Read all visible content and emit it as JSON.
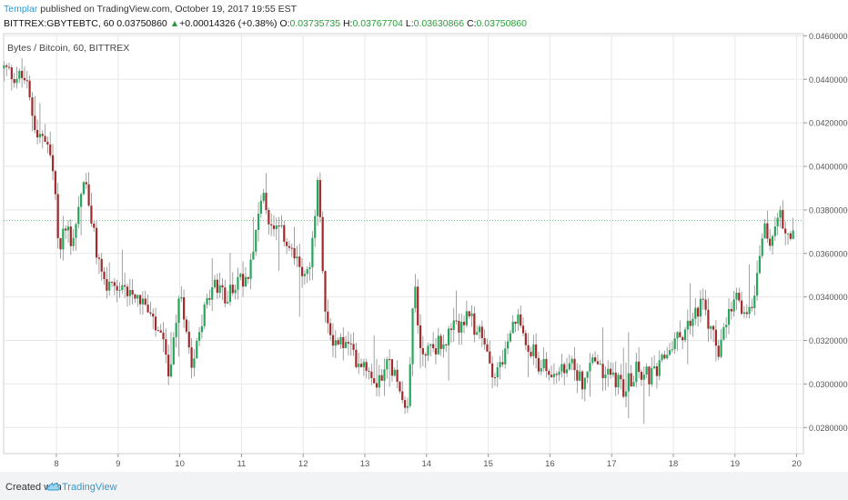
{
  "header": {
    "author": "Templar",
    "published_text": "published on TradingView.com, October 19, 2017 19:55 EST"
  },
  "quote": {
    "symbol": "BITTREX:GBYTEBTC, 60",
    "price": "0.03750860",
    "arrow": "▲",
    "change": "+0.00014326 (+0.38%)",
    "o_label": "O:",
    "o_value": "0.03735735",
    "h_label": "H:",
    "h_value": "0.03767704",
    "l_label": "L:",
    "l_value": "0.03630866",
    "c_label": "C:",
    "c_value": "0.03750860"
  },
  "footer": {
    "created_with": "Created with",
    "brand": "TradingView"
  },
  "colors": {
    "up": "#26a65b",
    "down": "#a12a2a",
    "grid": "#e8e8e8",
    "last_price_line": "#6cbf80",
    "brand": "#2e9ad3"
  },
  "chart_data": {
    "type": "candlestick",
    "title": "Bytes / Bitcoin, 60, BITTREX",
    "timeframe": "60",
    "x_ticks": [
      "8",
      "9",
      "10",
      "11",
      "12",
      "13",
      "14",
      "15",
      "16",
      "17",
      "18",
      "19",
      "20"
    ],
    "y_ticks": [
      "0.04600000",
      "0.04400000",
      "0.04200000",
      "0.04000000",
      "0.03800000",
      "0.03600000",
      "0.03400000",
      "0.03200000",
      "0.03000000",
      "0.02800000"
    ],
    "ylim": [
      0.0268,
      0.0461
    ],
    "last_price": 0.0375086,
    "grid": true,
    "anchors": [
      [
        7.15,
        0.0445
      ],
      [
        7.3,
        0.0442
      ],
      [
        7.5,
        0.044
      ],
      [
        7.6,
        0.0425
      ],
      [
        7.7,
        0.0415
      ],
      [
        7.85,
        0.041
      ],
      [
        7.95,
        0.0395
      ],
      [
        8.05,
        0.036
      ],
      [
        8.15,
        0.0375
      ],
      [
        8.25,
        0.0365
      ],
      [
        8.35,
        0.038
      ],
      [
        8.45,
        0.0395
      ],
      [
        8.55,
        0.0378
      ],
      [
        8.65,
        0.036
      ],
      [
        8.8,
        0.0345
      ],
      [
        9.0,
        0.034
      ],
      [
        9.2,
        0.0345
      ],
      [
        9.4,
        0.0338
      ],
      [
        9.55,
        0.0328
      ],
      [
        9.7,
        0.032
      ],
      [
        9.85,
        0.0303
      ],
      [
        10.0,
        0.0345
      ],
      [
        10.2,
        0.031
      ],
      [
        10.35,
        0.033
      ],
      [
        10.55,
        0.0345
      ],
      [
        10.75,
        0.034
      ],
      [
        10.95,
        0.0348
      ],
      [
        11.1,
        0.035
      ],
      [
        11.25,
        0.0375
      ],
      [
        11.35,
        0.0385
      ],
      [
        11.5,
        0.037
      ],
      [
        11.7,
        0.0368
      ],
      [
        11.9,
        0.0355
      ],
      [
        12.1,
        0.035
      ],
      [
        12.25,
        0.0395
      ],
      [
        12.35,
        0.033
      ],
      [
        12.5,
        0.032
      ],
      [
        12.7,
        0.0318
      ],
      [
        12.85,
        0.0312
      ],
      [
        13.0,
        0.031
      ],
      [
        13.2,
        0.0302
      ],
      [
        13.4,
        0.031
      ],
      [
        13.55,
        0.03
      ],
      [
        13.7,
        0.029
      ],
      [
        13.8,
        0.035
      ],
      [
        13.9,
        0.0315
      ],
      [
        14.1,
        0.0317
      ],
      [
        14.3,
        0.032
      ],
      [
        14.5,
        0.0327
      ],
      [
        14.7,
        0.033
      ],
      [
        14.9,
        0.032
      ],
      [
        15.1,
        0.0305
      ],
      [
        15.3,
        0.0315
      ],
      [
        15.45,
        0.033
      ],
      [
        15.6,
        0.0322
      ],
      [
        15.8,
        0.031
      ],
      [
        16.0,
        0.0305
      ],
      [
        16.2,
        0.0305
      ],
      [
        16.4,
        0.0308
      ],
      [
        16.55,
        0.03
      ],
      [
        16.7,
        0.0312
      ],
      [
        16.85,
        0.0305
      ],
      [
        17.0,
        0.0305
      ],
      [
        17.2,
        0.0298
      ],
      [
        17.4,
        0.0307
      ],
      [
        17.6,
        0.0303
      ],
      [
        17.75,
        0.0305
      ],
      [
        17.9,
        0.0315
      ],
      [
        18.1,
        0.0322
      ],
      [
        18.3,
        0.033
      ],
      [
        18.45,
        0.0338
      ],
      [
        18.6,
        0.0325
      ],
      [
        18.75,
        0.0315
      ],
      [
        18.85,
        0.0325
      ],
      [
        19.0,
        0.034
      ],
      [
        19.15,
        0.0332
      ],
      [
        19.3,
        0.034
      ],
      [
        19.45,
        0.0372
      ],
      [
        19.6,
        0.0365
      ],
      [
        19.75,
        0.0378
      ],
      [
        19.85,
        0.0368
      ],
      [
        19.95,
        0.0373
      ]
    ]
  }
}
